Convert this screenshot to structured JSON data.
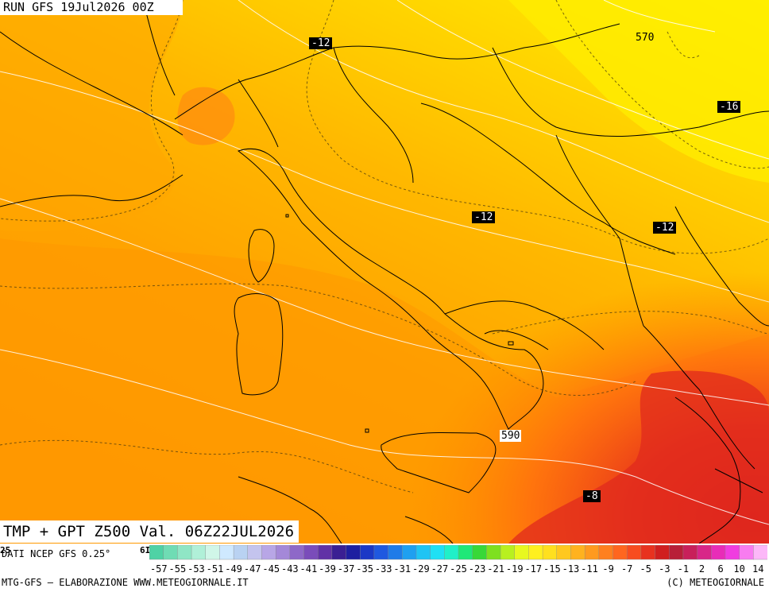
{
  "header": {
    "run": "RUN GFS 19Jul2026 00Z",
    "valid": "TMP + GPT Z500 Val. 06Z22JUL2026"
  },
  "labels": {
    "temp": [
      "-12",
      "-16",
      "-12",
      "-12",
      "-8"
    ],
    "gpt": [
      "570",
      "590"
    ]
  },
  "colorbar": {
    "ticks": [
      "-57",
      "-55",
      "-53",
      "-51",
      "-49",
      "-47",
      "-45",
      "-43",
      "-41",
      "-39",
      "-37",
      "-35",
      "-33",
      "-31",
      "-29",
      "-27",
      "-25",
      "-23",
      "-21",
      "-19",
      "-17",
      "-15",
      "-13",
      "-11",
      "-9",
      "-7",
      "-5",
      "-3",
      "-1",
      "2",
      "6",
      "10",
      "14"
    ],
    "colors": [
      "#4fd2a5",
      "#6fdcb4",
      "#8fe6c5",
      "#b0f0d8",
      "#d0f6e8",
      "#cfe9ff",
      "#b9d2f2",
      "#c4c4ee",
      "#b8a6e6",
      "#a488d8",
      "#8e68c8",
      "#7a4cba",
      "#6132a6",
      "#3a1f93",
      "#1e1fa0",
      "#1b38c6",
      "#1f58e0",
      "#1f7be8",
      "#1fa0f0",
      "#1fc4f4",
      "#1fe0f4",
      "#1ff0c8",
      "#1fe878",
      "#38d838",
      "#7ee01f",
      "#b8f01f",
      "#e8f81f",
      "#fff01f",
      "#ffe01f",
      "#ffc81f",
      "#ffb21f",
      "#ff9a1f",
      "#ff801f",
      "#ff661f",
      "#f84c1f",
      "#e8321f",
      "#d01f1f",
      "#b81f38",
      "#c8205a",
      "#d82688",
      "#e82cb8",
      "#f03ce0",
      "#f87cf0",
      "#fcb8f8"
    ],
    "edge_left": "25",
    "edge_right": "6I",
    "data_source": "DATI NCEP GFS 0.25°"
  },
  "footer": {
    "left": "MTG-GFS – ELABORAZIONE WWW.METEOGIORNALE.IT",
    "right": "(C) METEOGIORNALE"
  }
}
